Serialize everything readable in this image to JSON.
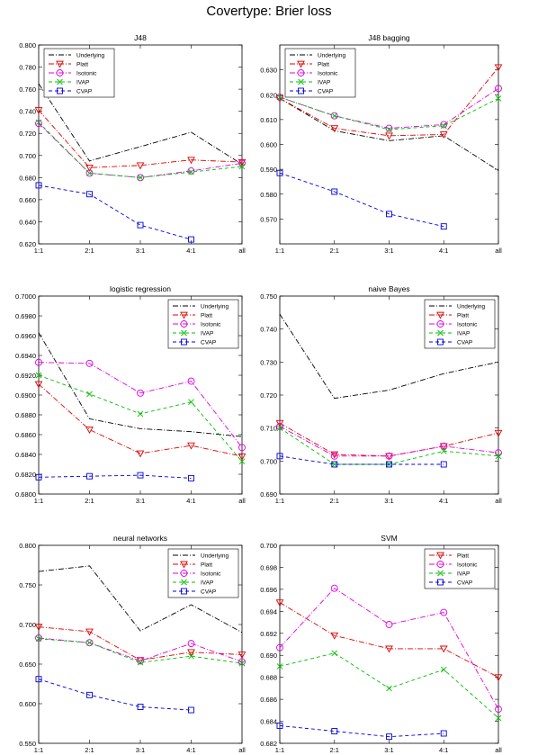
{
  "page_title": "Covertype: Brier loss",
  "legend_names": {
    "underlying": "Underlying",
    "platt": "Platt",
    "isotonic": "Isotonic",
    "ivap": "IVAP",
    "cvap": "CVAP"
  },
  "colors": {
    "underlying": "#000000",
    "platt": "#e00000",
    "isotonic": "#e000e0",
    "ivap": "#00c000",
    "cvap": "#0000e0"
  },
  "chart_data": [
    {
      "type": "line",
      "title": "J48",
      "categories": [
        "1:1",
        "2:1",
        "3:1",
        "4:1",
        "all"
      ],
      "ylim": [
        0.62,
        0.8
      ],
      "yticks": [
        0.62,
        0.64,
        0.66,
        0.68,
        0.7,
        0.72,
        0.74,
        0.76,
        0.78,
        0.8
      ],
      "ytick_labels": [
        "0.620",
        "0.640",
        "0.660",
        "0.680",
        "0.700",
        "0.720",
        "0.740",
        "0.760",
        "0.780",
        "0.800"
      ],
      "legend": "top-left",
      "grid": false,
      "series": [
        {
          "key": "underlying",
          "name": "Underlying",
          "values": [
            0.765,
            0.695,
            0.708,
            0.721,
            0.692
          ]
        },
        {
          "key": "platt",
          "name": "Platt",
          "values": [
            0.741,
            0.689,
            0.691,
            0.696,
            0.694
          ]
        },
        {
          "key": "isotonic",
          "name": "Isotonic",
          "values": [
            0.729,
            0.684,
            0.68,
            0.686,
            0.693
          ]
        },
        {
          "key": "ivap",
          "name": "IVAP",
          "values": [
            0.73,
            0.684,
            0.68,
            0.685,
            0.69
          ]
        },
        {
          "key": "cvap",
          "name": "CVAP",
          "values": [
            0.673,
            0.665,
            0.637,
            0.624,
            null
          ]
        }
      ]
    },
    {
      "type": "line",
      "title": "J48 bagging",
      "categories": [
        "1:1",
        "2:1",
        "3:1",
        "4:1",
        "all"
      ],
      "ylim": [
        0.56,
        0.64
      ],
      "yticks": [
        0.57,
        0.58,
        0.59,
        0.6,
        0.61,
        0.62,
        0.63
      ],
      "ytick_labels": [
        "0.570",
        "0.580",
        "0.590",
        "0.600",
        "0.610",
        "0.620",
        "0.630"
      ],
      "legend": "top-left",
      "grid": false,
      "series": [
        {
          "key": "underlying",
          "name": "Underlying",
          "values": [
            0.6185,
            0.6055,
            0.6015,
            0.6035,
            0.5895
          ]
        },
        {
          "key": "platt",
          "name": "Platt",
          "values": [
            0.6185,
            0.6065,
            0.6035,
            0.604,
            0.631
          ]
        },
        {
          "key": "isotonic",
          "name": "Isotonic",
          "values": [
            0.619,
            0.6115,
            0.6065,
            0.608,
            0.6225
          ]
        },
        {
          "key": "ivap",
          "name": "IVAP",
          "values": [
            0.619,
            0.6115,
            0.606,
            0.6075,
            0.6185
          ]
        },
        {
          "key": "cvap",
          "name": "CVAP",
          "values": [
            0.5885,
            0.581,
            0.572,
            0.567,
            null
          ]
        }
      ]
    },
    {
      "type": "line",
      "title": "logistic regression",
      "categories": [
        "1:1",
        "2:1",
        "3:1",
        "4:1",
        "all"
      ],
      "ylim": [
        0.68,
        0.7
      ],
      "yticks": [
        0.68,
        0.682,
        0.684,
        0.686,
        0.688,
        0.69,
        0.692,
        0.694,
        0.696,
        0.698,
        0.7
      ],
      "ytick_labels": [
        "0.6800",
        "0.6820",
        "0.6840",
        "0.6860",
        "0.6880",
        "0.6900",
        "0.6920",
        "0.6940",
        "0.6960",
        "0.6980",
        "0.7000"
      ],
      "legend": "top-right",
      "grid": false,
      "series": [
        {
          "key": "underlying",
          "name": "Underlying",
          "values": [
            0.6963,
            0.6876,
            0.6866,
            0.6863,
            0.6858
          ]
        },
        {
          "key": "platt",
          "name": "Platt",
          "values": [
            0.6911,
            0.6865,
            0.6841,
            0.6849,
            0.6838
          ]
        },
        {
          "key": "isotonic",
          "name": "Isotonic",
          "values": [
            0.6933,
            0.6932,
            0.6902,
            0.6914,
            0.6847
          ]
        },
        {
          "key": "ivap",
          "name": "IVAP",
          "values": [
            0.692,
            0.6901,
            0.6881,
            0.6893,
            0.6833
          ]
        },
        {
          "key": "cvap",
          "name": "CVAP",
          "values": [
            0.6817,
            0.6818,
            0.6819,
            0.6816,
            null
          ]
        }
      ]
    },
    {
      "type": "line",
      "title": "naive Bayes",
      "categories": [
        "1:1",
        "2:1",
        "3:1",
        "4:1",
        "all"
      ],
      "ylim": [
        0.69,
        0.75
      ],
      "yticks": [
        0.69,
        0.7,
        0.71,
        0.72,
        0.73,
        0.74,
        0.75
      ],
      "ytick_labels": [
        "0.690",
        "0.700",
        "0.710",
        "0.720",
        "0.730",
        "0.740",
        "0.750"
      ],
      "legend": "top-right",
      "grid": false,
      "series": [
        {
          "key": "underlying",
          "name": "Underlying",
          "values": [
            0.7445,
            0.719,
            0.7215,
            0.7265,
            0.73
          ]
        },
        {
          "key": "platt",
          "name": "Platt",
          "values": [
            0.7115,
            0.702,
            0.7015,
            0.7045,
            0.7085
          ]
        },
        {
          "key": "isotonic",
          "name": "Isotonic",
          "values": [
            0.7105,
            0.7015,
            0.7015,
            0.7045,
            0.7025
          ]
        },
        {
          "key": "ivap",
          "name": "IVAP",
          "values": [
            0.71,
            0.699,
            0.699,
            0.703,
            0.7015
          ]
        },
        {
          "key": "cvap",
          "name": "CVAP",
          "values": [
            0.7015,
            0.699,
            0.699,
            0.699,
            null
          ]
        }
      ]
    },
    {
      "type": "line",
      "title": "neural networks",
      "categories": [
        "1:1",
        "2:1",
        "3:1",
        "4:1",
        "all"
      ],
      "ylim": [
        0.55,
        0.8
      ],
      "yticks": [
        0.55,
        0.6,
        0.65,
        0.7,
        0.75,
        0.8
      ],
      "ytick_labels": [
        "0.550",
        "0.600",
        "0.650",
        "0.700",
        "0.750",
        "0.800"
      ],
      "legend": "top-right",
      "grid": false,
      "series": [
        {
          "key": "underlying",
          "name": "Underlying",
          "values": [
            0.767,
            0.774,
            0.692,
            0.725,
            0.69
          ]
        },
        {
          "key": "platt",
          "name": "Platt",
          "values": [
            0.697,
            0.691,
            0.655,
            0.665,
            0.662
          ]
        },
        {
          "key": "isotonic",
          "name": "Isotonic",
          "values": [
            0.683,
            0.677,
            0.654,
            0.676,
            0.653
          ]
        },
        {
          "key": "ivap",
          "name": "IVAP",
          "values": [
            0.682,
            0.677,
            0.652,
            0.66,
            0.651
          ]
        },
        {
          "key": "cvap",
          "name": "CVAP",
          "values": [
            0.631,
            0.611,
            0.596,
            0.592,
            null
          ]
        }
      ]
    },
    {
      "type": "line",
      "title": "SVM",
      "categories": [
        "1:1",
        "2:1",
        "3:1",
        "4:1",
        "all"
      ],
      "ylim": [
        0.682,
        0.7
      ],
      "yticks": [
        0.682,
        0.684,
        0.686,
        0.688,
        0.69,
        0.692,
        0.694,
        0.696,
        0.698,
        0.7
      ],
      "ytick_labels": [
        "0.682",
        "0.684",
        "0.686",
        "0.688",
        "0.690",
        "0.692",
        "0.694",
        "0.696",
        "0.698",
        "0.700"
      ],
      "legend": "top-right",
      "grid": false,
      "series": [
        {
          "key": "platt",
          "name": "Platt",
          "values": [
            0.6948,
            0.6918,
            0.6906,
            0.6906,
            0.688
          ]
        },
        {
          "key": "isotonic",
          "name": "Isotonic",
          "values": [
            0.6907,
            0.6961,
            0.6928,
            0.6939,
            0.6851
          ]
        },
        {
          "key": "ivap",
          "name": "IVAP",
          "values": [
            0.689,
            0.6902,
            0.687,
            0.6887,
            0.6843
          ]
        },
        {
          "key": "cvap",
          "name": "CVAP",
          "values": [
            0.6836,
            0.6831,
            0.6826,
            0.6829,
            null
          ]
        }
      ]
    }
  ]
}
